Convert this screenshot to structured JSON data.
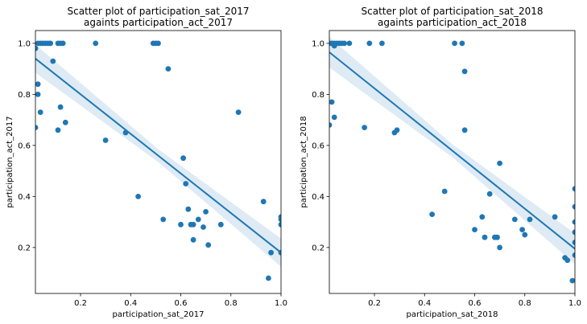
{
  "chart_data": [
    {
      "type": "scatter",
      "title": [
        "Scatter plot of participation_sat_2017",
        "againts participation_act_2017"
      ],
      "xlabel": "participation_sat_2017",
      "ylabel": "participation_act_2017",
      "xlim": [
        0.02,
        1.0
      ],
      "ylim": [
        0.02,
        1.05
      ],
      "xticks": [
        0.2,
        0.4,
        0.6,
        0.8,
        1.0
      ],
      "xtick_labels": [
        "0.2",
        "0.4",
        "0.6",
        "0.8",
        "1.0"
      ],
      "yticks": [
        0.2,
        0.4,
        0.6,
        0.8,
        1.0
      ],
      "ytick_labels": [
        "0.2",
        "0.4",
        "0.6",
        "0.8",
        "1.0"
      ],
      "color": "#1f77b4",
      "band_color": "#1f77b4",
      "regression": {
        "x": [
          0.02,
          1.0
        ],
        "y": [
          0.94,
          0.18
        ],
        "ci_half_width": [
          0.055,
          0.025,
          0.055
        ]
      },
      "points": [
        [
          0.02,
          0.98
        ],
        [
          0.02,
          0.67
        ],
        [
          0.03,
          1.0
        ],
        [
          0.04,
          1.0
        ],
        [
          0.05,
          1.0
        ],
        [
          0.06,
          1.0
        ],
        [
          0.07,
          1.0
        ],
        [
          0.08,
          1.0
        ],
        [
          0.11,
          1.0
        ],
        [
          0.12,
          1.0
        ],
        [
          0.13,
          1.0
        ],
        [
          0.26,
          1.0
        ],
        [
          0.49,
          1.0
        ],
        [
          0.5,
          1.0
        ],
        [
          0.51,
          1.0
        ],
        [
          0.09,
          0.93
        ],
        [
          0.55,
          0.9
        ],
        [
          0.03,
          0.84
        ],
        [
          0.03,
          0.8
        ],
        [
          0.04,
          0.73
        ],
        [
          0.12,
          0.75
        ],
        [
          0.11,
          0.66
        ],
        [
          0.14,
          0.69
        ],
        [
          0.83,
          0.73
        ],
        [
          0.38,
          0.65
        ],
        [
          0.3,
          0.62
        ],
        [
          0.61,
          0.55
        ],
        [
          0.62,
          0.45
        ],
        [
          0.43,
          0.4
        ],
        [
          0.93,
          0.38
        ],
        [
          0.63,
          0.35
        ],
        [
          0.53,
          0.31
        ],
        [
          0.67,
          0.31
        ],
        [
          0.7,
          0.34
        ],
        [
          0.6,
          0.29
        ],
        [
          0.64,
          0.29
        ],
        [
          0.65,
          0.29
        ],
        [
          0.69,
          0.28
        ],
        [
          0.76,
          0.29
        ],
        [
          1.0,
          0.32
        ],
        [
          1.0,
          0.31
        ],
        [
          1.0,
          0.29
        ],
        [
          0.65,
          0.23
        ],
        [
          0.71,
          0.21
        ],
        [
          0.96,
          0.18
        ],
        [
          1.0,
          0.18
        ],
        [
          0.95,
          0.08
        ]
      ]
    },
    {
      "type": "scatter",
      "title": [
        "Scatter plot of participation_sat_2018",
        "againts participation_act_2018"
      ],
      "xlabel": "participation_sat_2018",
      "ylabel": "participation_act_2018",
      "xlim": [
        0.02,
        1.0
      ],
      "ylim": [
        0.02,
        1.05
      ],
      "xticks": [
        0.2,
        0.4,
        0.6,
        0.8,
        1.0
      ],
      "xtick_labels": [
        "0.2",
        "0.4",
        "0.6",
        "0.8",
        "1.0"
      ],
      "yticks": [
        0.2,
        0.4,
        0.6,
        0.8,
        1.0
      ],
      "ytick_labels": [
        "0.2",
        "0.4",
        "0.6",
        "0.8",
        "1.0"
      ],
      "color": "#1f77b4",
      "band_color": "#1f77b4",
      "regression": {
        "x": [
          0.02,
          1.0
        ],
        "y": [
          0.965,
          0.195
        ],
        "ci_half_width": [
          0.06,
          0.025,
          0.06
        ]
      },
      "points": [
        [
          0.02,
          1.0
        ],
        [
          0.03,
          1.0
        ],
        [
          0.04,
          1.0
        ],
        [
          0.05,
          1.0
        ],
        [
          0.06,
          1.0
        ],
        [
          0.07,
          1.0
        ],
        [
          0.08,
          1.0
        ],
        [
          0.1,
          1.0
        ],
        [
          0.04,
          0.99
        ],
        [
          0.18,
          1.0
        ],
        [
          0.23,
          1.0
        ],
        [
          0.52,
          1.0
        ],
        [
          0.55,
          1.0
        ],
        [
          0.56,
          0.89
        ],
        [
          0.03,
          0.77
        ],
        [
          0.02,
          0.68
        ],
        [
          0.04,
          0.71
        ],
        [
          0.16,
          0.67
        ],
        [
          0.28,
          0.65
        ],
        [
          0.29,
          0.66
        ],
        [
          0.56,
          0.66
        ],
        [
          0.7,
          0.53
        ],
        [
          0.48,
          0.42
        ],
        [
          0.66,
          0.41
        ],
        [
          0.43,
          0.33
        ],
        [
          0.63,
          0.32
        ],
        [
          0.76,
          0.31
        ],
        [
          0.82,
          0.31
        ],
        [
          0.92,
          0.32
        ],
        [
          0.6,
          0.27
        ],
        [
          0.64,
          0.24
        ],
        [
          0.68,
          0.24
        ],
        [
          0.69,
          0.24
        ],
        [
          0.79,
          0.27
        ],
        [
          0.8,
          0.25
        ],
        [
          0.7,
          0.2
        ],
        [
          1.0,
          0.43
        ],
        [
          1.0,
          0.36
        ],
        [
          1.0,
          0.3
        ],
        [
          1.0,
          0.26
        ],
        [
          1.0,
          0.22
        ],
        [
          1.0,
          0.17
        ],
        [
          0.96,
          0.16
        ],
        [
          0.97,
          0.15
        ],
        [
          0.99,
          0.07
        ]
      ]
    }
  ]
}
